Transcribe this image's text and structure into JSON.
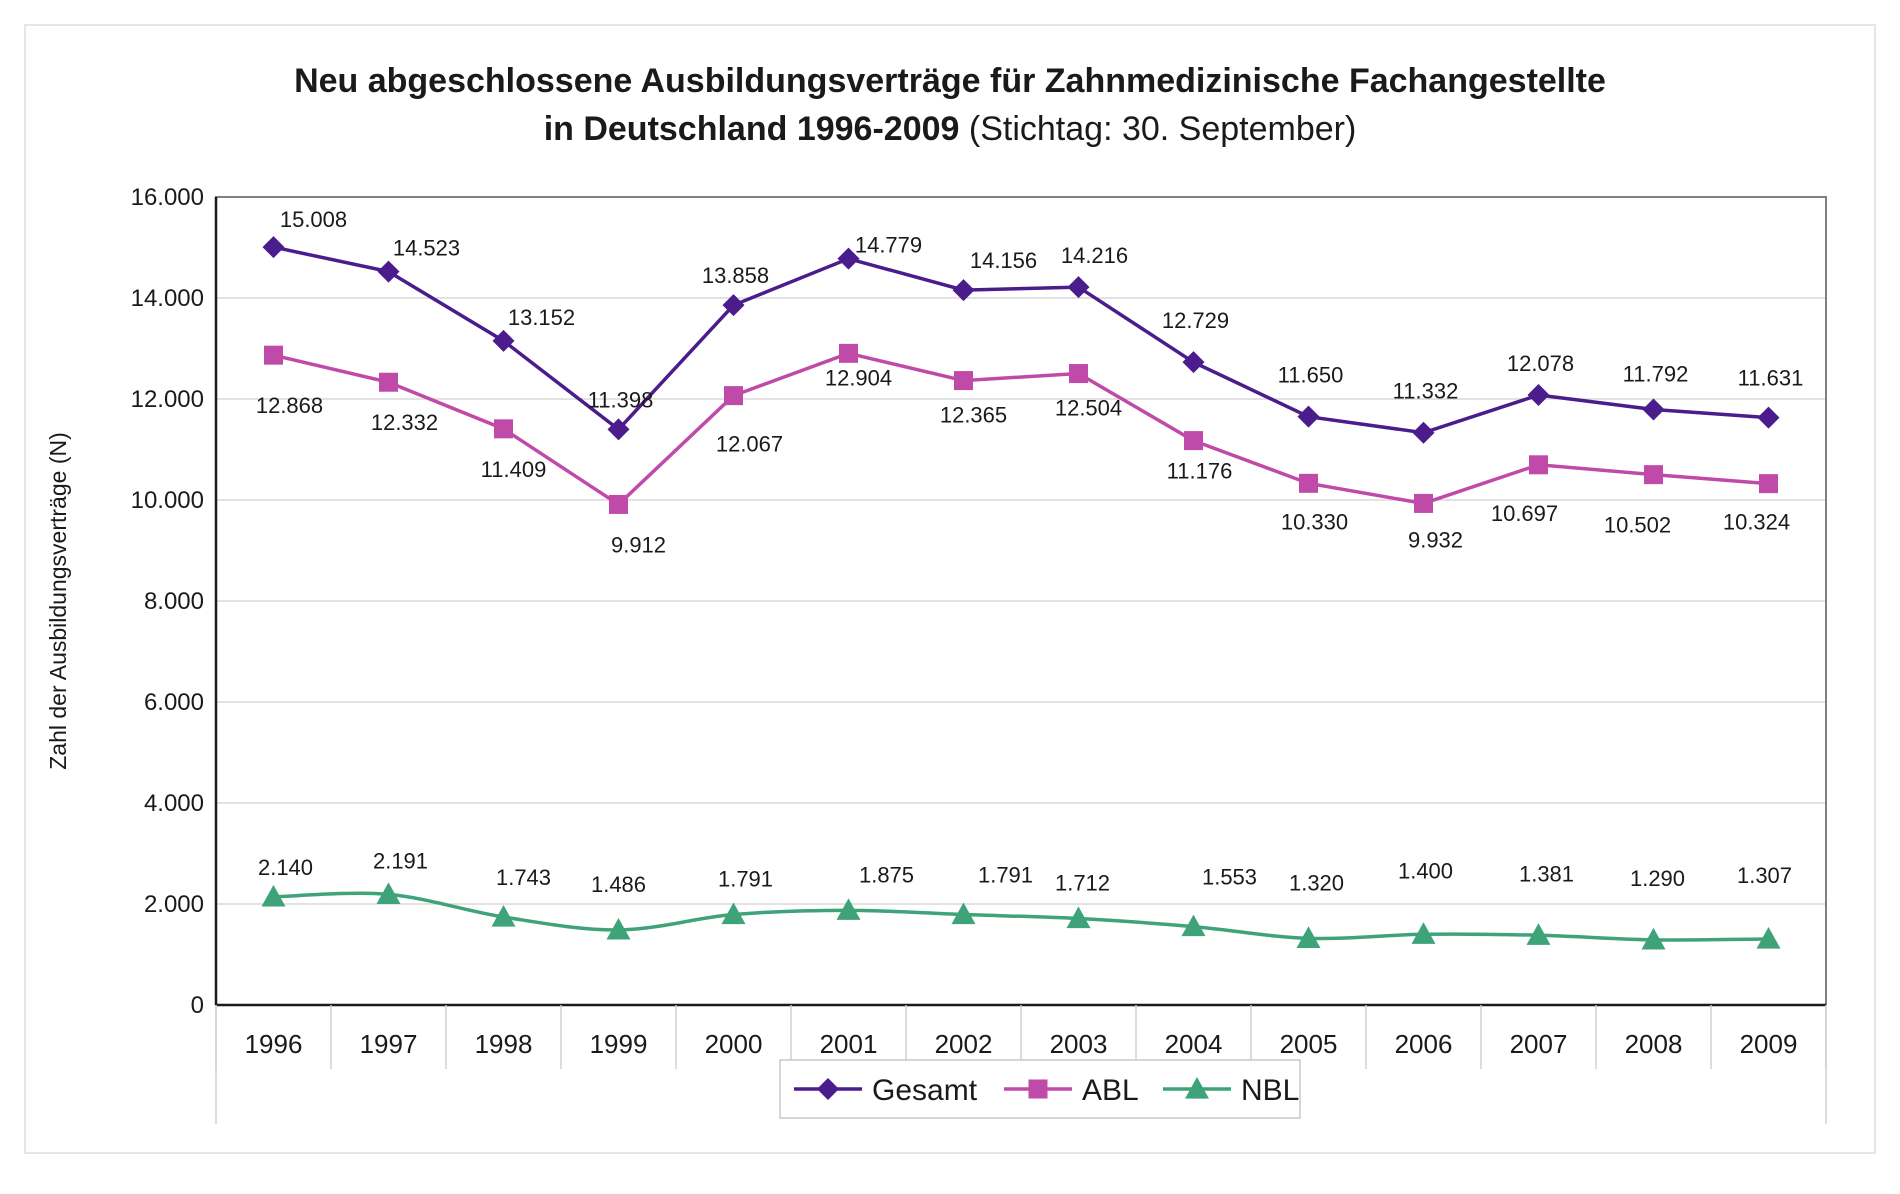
{
  "chart_data": {
    "type": "line",
    "title": "Neu abgeschlossene Ausbildungsverträge für Zahnmedizinische Fachangestellte",
    "title_line2_bold": "in Deutschland 1996-2009",
    "title_line2_normal": "(Stichtag: 30. September)",
    "ylabel": "Zahl der Ausbildungsverträge (N)",
    "xlabel": "",
    "ylim": [
      0,
      16000
    ],
    "yticks": [
      0,
      2000,
      4000,
      6000,
      8000,
      10000,
      12000,
      14000,
      16000
    ],
    "ytick_labels": [
      "0",
      "2.000",
      "4.000",
      "6.000",
      "8.000",
      "10.000",
      "12.000",
      "14.000",
      "16.000"
    ],
    "grid": true,
    "legend_position": "bottom-center",
    "categories": [
      "1996",
      "1997",
      "1998",
      "1999",
      "2000",
      "2001",
      "2002",
      "2003",
      "2004",
      "2005",
      "2006",
      "2007",
      "2008",
      "2009"
    ],
    "series": [
      {
        "name": "Gesamt",
        "color": "#4b1c8c",
        "marker": "diamond",
        "values": [
          15008,
          14523,
          13152,
          11398,
          13858,
          14779,
          14156,
          14216,
          12729,
          11650,
          11332,
          12078,
          11792,
          11631
        ],
        "labels": [
          "15.008",
          "14.523",
          "13.152",
          "11.398",
          "13.858",
          "14.779",
          "14.156",
          "14.216",
          "12.729",
          "11.650",
          "11.332",
          "12.078",
          "11.792",
          "11.631"
        ]
      },
      {
        "name": "ABL",
        "color": "#c04aa8",
        "marker": "square",
        "values": [
          12868,
          12332,
          11409,
          9912,
          12067,
          12904,
          12365,
          12504,
          11176,
          10330,
          9932,
          10697,
          10502,
          10324
        ],
        "labels": [
          "12.868",
          "12.332",
          "11.409",
          "9.912",
          "12.067",
          "12.904",
          "12.365",
          "12.504",
          "11.176",
          "10.330",
          "9.932",
          "10.697",
          "10.502",
          "10.324"
        ]
      },
      {
        "name": "NBL",
        "color": "#3fa37a",
        "marker": "triangle",
        "values": [
          2140,
          2191,
          1743,
          1486,
          1791,
          1875,
          1791,
          1712,
          1553,
          1320,
          1400,
          1381,
          1290,
          1307
        ],
        "labels": [
          "2.140",
          "2.191",
          "1.743",
          "1.486",
          "1.791",
          "1.875",
          "1.791",
          "1.712",
          "1.553",
          "1.320",
          "1.400",
          "1.381",
          "1.290",
          "1.307"
        ]
      }
    ]
  }
}
